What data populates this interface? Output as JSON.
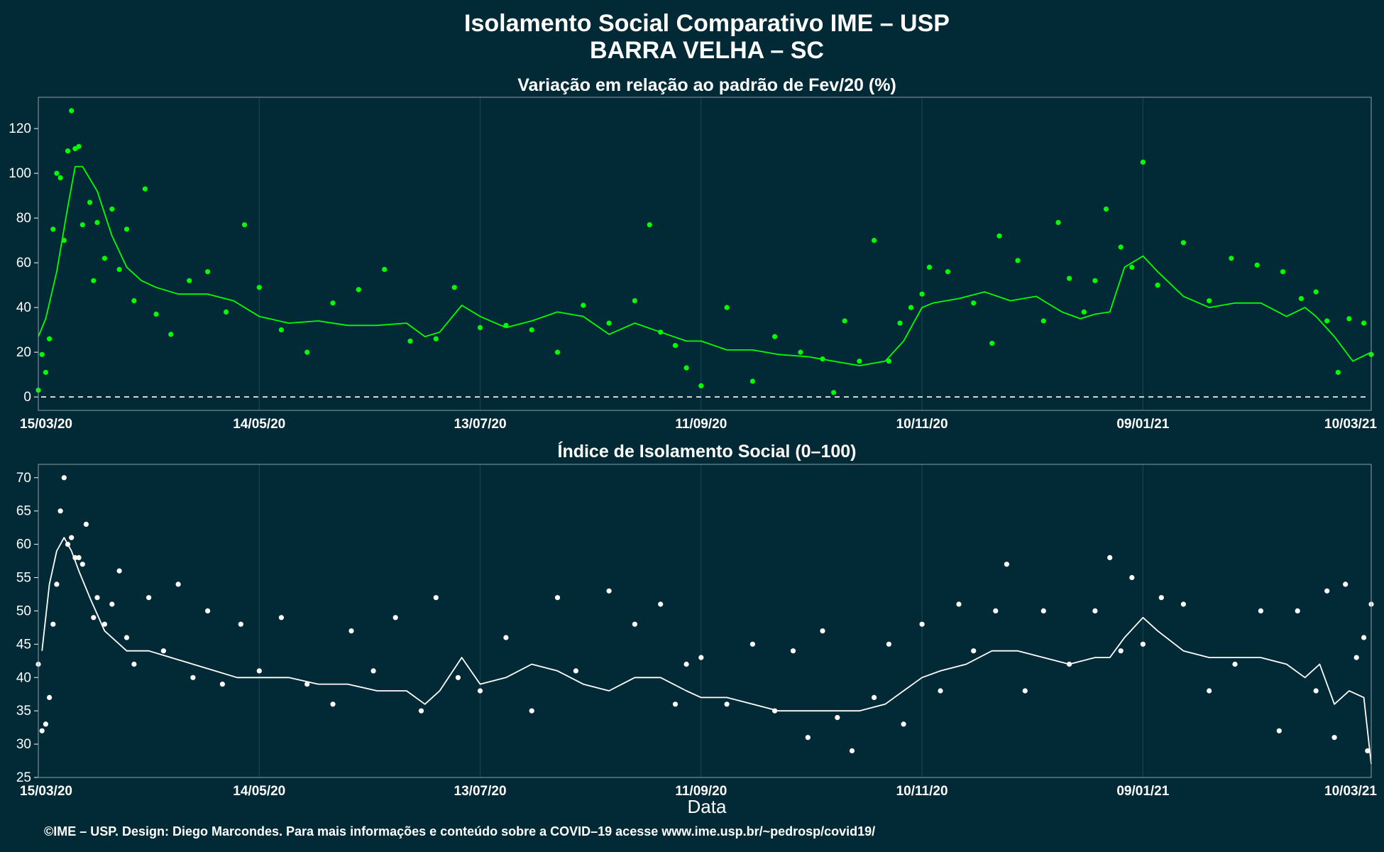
{
  "header": {
    "title": "Isolamento Social Comparativo IME – USP",
    "subtitle": "BARRA VELHA – SC"
  },
  "footer": {
    "credit": "©IME – USP. Design: Diego Marcondes. Para mais informações e conteúdo sobre a COVID–19 acesse www.ime.usp.br/~pedrosp/covid19/"
  },
  "colors": {
    "background": "#022a36",
    "variation_series": "#00ff00",
    "index_series": "#ffffff",
    "grid": "#1d4652"
  },
  "chart_data": [
    {
      "type": "scatter",
      "title": "Variação em relação ao padrão de Fev/20 (%)",
      "xlabel": "",
      "ylabel": "",
      "x_ticks": [
        "15/03/20",
        "14/05/20",
        "13/07/20",
        "11/09/20",
        "10/11/20",
        "09/01/21",
        "10/03/21"
      ],
      "x_range": [
        "15/03/20",
        "12/03/21"
      ],
      "ylim": [
        -6,
        134
      ],
      "y_ticks": [
        0,
        20,
        40,
        60,
        80,
        100,
        120
      ],
      "reference_line": 0,
      "grid": true,
      "series": [
        {
          "style": "points",
          "x": [
            "15/03/20",
            "16/03/20",
            "17/03/20",
            "18/03/20",
            "19/03/20",
            "20/03/20",
            "21/03/20",
            "22/03/20",
            "23/03/20",
            "24/03/20",
            "25/03/20",
            "26/03/20",
            "27/03/20",
            "29/03/20",
            "30/03/20",
            "31/03/20",
            "02/04/20",
            "04/04/20",
            "06/04/20",
            "08/04/20",
            "10/04/20",
            "13/04/20",
            "16/04/20",
            "20/04/20",
            "25/04/20",
            "30/04/20",
            "05/05/20",
            "10/05/20",
            "14/05/20",
            "20/05/20",
            "27/05/20",
            "03/06/20",
            "10/06/20",
            "17/06/20",
            "24/06/20",
            "01/07/20",
            "06/07/20",
            "13/07/20",
            "20/07/20",
            "27/07/20",
            "03/08/20",
            "10/08/20",
            "17/08/20",
            "24/08/20",
            "28/08/20",
            "31/08/20",
            "04/09/20",
            "07/09/20",
            "11/09/20",
            "18/09/20",
            "25/09/20",
            "01/10/20",
            "08/10/20",
            "14/10/20",
            "17/10/20",
            "20/10/20",
            "24/10/20",
            "28/10/20",
            "01/11/20",
            "04/11/20",
            "07/11/20",
            "10/11/20",
            "12/11/20",
            "17/11/20",
            "24/11/20",
            "29/11/20",
            "01/12/20",
            "06/12/20",
            "13/12/20",
            "17/12/20",
            "20/12/20",
            "24/12/20",
            "27/12/20",
            "30/12/20",
            "03/01/21",
            "06/01/21",
            "09/01/21",
            "13/01/21",
            "20/01/21",
            "27/01/21",
            "02/02/21",
            "09/02/21",
            "16/02/21",
            "21/02/21",
            "25/02/21",
            "28/02/21",
            "03/03/21",
            "06/03/21",
            "10/03/21",
            "12/03/21"
          ],
          "y": [
            3,
            19,
            11,
            26,
            75,
            100,
            98,
            70,
            110,
            128,
            111,
            112,
            77,
            87,
            52,
            78,
            62,
            84,
            57,
            75,
            43,
            93,
            37,
            28,
            52,
            56,
            38,
            77,
            49,
            30,
            20,
            42,
            48,
            57,
            25,
            26,
            49,
            31,
            32,
            30,
            20,
            41,
            33,
            43,
            77,
            29,
            23,
            13,
            5,
            40,
            7,
            27,
            20,
            17,
            2,
            34,
            16,
            70,
            16,
            33,
            40,
            46,
            58,
            56,
            42,
            24,
            72,
            61,
            34,
            78,
            53,
            38,
            52,
            84,
            67,
            58,
            105,
            50,
            69,
            43,
            62,
            59,
            56,
            44,
            47,
            34,
            11,
            35,
            33,
            19
          ]
        },
        {
          "style": "line",
          "x": [
            "15/03/20",
            "17/03/20",
            "20/03/20",
            "23/03/20",
            "25/03/20",
            "27/03/20",
            "31/03/20",
            "04/04/20",
            "08/04/20",
            "12/04/20",
            "16/04/20",
            "22/04/20",
            "30/04/20",
            "07/05/20",
            "14/05/20",
            "22/05/20",
            "30/05/20",
            "07/06/20",
            "15/06/20",
            "23/06/20",
            "28/06/20",
            "02/07/20",
            "08/07/20",
            "13/07/20",
            "20/07/20",
            "27/07/20",
            "03/08/20",
            "10/08/20",
            "17/08/20",
            "24/08/20",
            "31/08/20",
            "07/09/20",
            "11/09/20",
            "18/09/20",
            "25/09/20",
            "02/10/20",
            "10/10/20",
            "17/10/20",
            "24/10/20",
            "31/10/20",
            "05/11/20",
            "10/11/20",
            "13/11/20",
            "20/11/20",
            "27/11/20",
            "04/12/20",
            "11/12/20",
            "18/12/20",
            "23/12/20",
            "27/12/20",
            "31/12/20",
            "04/01/21",
            "09/01/21",
            "13/01/21",
            "20/01/21",
            "27/01/21",
            "03/02/21",
            "10/02/21",
            "17/02/21",
            "22/02/21",
            "25/02/21",
            "02/03/21",
            "07/03/21",
            "12/03/21"
          ],
          "y": [
            27,
            35,
            56,
            85,
            103,
            103,
            92,
            72,
            58,
            52,
            49,
            46,
            46,
            43,
            36,
            33,
            34,
            32,
            32,
            33,
            27,
            29,
            41,
            36,
            31,
            34,
            38,
            36,
            28,
            33,
            29,
            25,
            25,
            21,
            21,
            19,
            18,
            16,
            14,
            16,
            25,
            40,
            42,
            44,
            47,
            43,
            45,
            38,
            35,
            37,
            38,
            58,
            63,
            56,
            45,
            40,
            42,
            42,
            36,
            40,
            36,
            27,
            16,
            20
          ]
        }
      ]
    },
    {
      "type": "scatter",
      "title": "Índice de Isolamento Social (0–100)",
      "xlabel": "Data",
      "ylabel": "",
      "x_ticks": [
        "15/03/20",
        "14/05/20",
        "13/07/20",
        "11/09/20",
        "10/11/20",
        "09/01/21",
        "10/03/21"
      ],
      "x_range": [
        "15/03/20",
        "12/03/21"
      ],
      "ylim": [
        25,
        72
      ],
      "y_ticks": [
        25,
        30,
        35,
        40,
        45,
        50,
        55,
        60,
        65,
        70
      ],
      "grid": true,
      "series": [
        {
          "style": "points",
          "x": [
            "15/03/20",
            "16/03/20",
            "17/03/20",
            "18/03/20",
            "19/03/20",
            "20/03/20",
            "21/03/20",
            "22/03/20",
            "23/03/20",
            "24/03/20",
            "25/03/20",
            "26/03/20",
            "27/03/20",
            "28/03/20",
            "30/03/20",
            "31/03/20",
            "02/04/20",
            "04/04/20",
            "06/04/20",
            "08/04/20",
            "10/04/20",
            "14/04/20",
            "18/04/20",
            "22/04/20",
            "26/04/20",
            "30/04/20",
            "04/05/20",
            "09/05/20",
            "14/05/20",
            "20/05/20",
            "27/05/20",
            "03/06/20",
            "08/06/20",
            "14/06/20",
            "20/06/20",
            "27/06/20",
            "01/07/20",
            "07/07/20",
            "13/07/20",
            "20/07/20",
            "27/07/20",
            "03/08/20",
            "08/08/20",
            "17/08/20",
            "24/08/20",
            "31/08/20",
            "04/09/20",
            "07/09/20",
            "11/09/20",
            "18/09/20",
            "25/09/20",
            "01/10/20",
            "06/10/20",
            "10/10/20",
            "14/10/20",
            "18/10/20",
            "22/10/20",
            "28/10/20",
            "01/11/20",
            "05/11/20",
            "10/11/20",
            "15/11/20",
            "20/11/20",
            "24/11/20",
            "30/11/20",
            "03/12/20",
            "08/12/20",
            "13/12/20",
            "20/12/20",
            "27/12/20",
            "31/12/20",
            "03/01/21",
            "06/01/21",
            "09/01/21",
            "14/01/21",
            "20/01/21",
            "27/01/21",
            "03/02/21",
            "10/02/21",
            "15/02/21",
            "20/02/21",
            "25/02/21",
            "28/02/21",
            "02/03/21",
            "05/03/21",
            "08/03/21",
            "10/03/21",
            "11/03/21",
            "12/03/21"
          ],
          "y": [
            42,
            32,
            33,
            37,
            48,
            54,
            65,
            70,
            60,
            61,
            58,
            58,
            57,
            63,
            49,
            52,
            48,
            51,
            56,
            46,
            42,
            52,
            44,
            54,
            40,
            50,
            39,
            48,
            41,
            49,
            39,
            36,
            47,
            41,
            49,
            35,
            52,
            40,
            38,
            46,
            35,
            52,
            41,
            53,
            48,
            51,
            36,
            42,
            43,
            36,
            45,
            35,
            44,
            31,
            47,
            34,
            29,
            37,
            45,
            33,
            48,
            38,
            51,
            44,
            50,
            57,
            38,
            50,
            42,
            50,
            58,
            44,
            55,
            45,
            52,
            51,
            38,
            42,
            50,
            32,
            50,
            38,
            53,
            31,
            54,
            43,
            46,
            29,
            51
          ]
        },
        {
          "style": "line",
          "x": [
            "16/03/20",
            "18/03/20",
            "20/03/20",
            "22/03/20",
            "24/03/20",
            "26/03/20",
            "29/03/20",
            "02/04/20",
            "08/04/20",
            "14/04/20",
            "20/04/20",
            "26/04/20",
            "02/05/20",
            "08/05/20",
            "14/05/20",
            "22/05/20",
            "30/05/20",
            "07/06/20",
            "15/06/20",
            "23/06/20",
            "28/06/20",
            "02/07/20",
            "08/07/20",
            "13/07/20",
            "20/07/20",
            "27/07/20",
            "03/08/20",
            "10/08/20",
            "17/08/20",
            "24/08/20",
            "31/08/20",
            "07/09/20",
            "11/09/20",
            "18/09/20",
            "25/09/20",
            "02/10/20",
            "10/10/20",
            "17/10/20",
            "24/10/20",
            "31/10/20",
            "05/11/20",
            "10/11/20",
            "15/11/20",
            "22/11/20",
            "29/11/20",
            "06/12/20",
            "13/12/20",
            "20/12/20",
            "27/12/20",
            "31/12/20",
            "04/01/21",
            "09/01/21",
            "13/01/21",
            "20/01/21",
            "27/01/21",
            "03/02/21",
            "10/02/21",
            "17/02/21",
            "22/02/21",
            "26/02/21",
            "02/03/21",
            "06/03/21",
            "10/03/21",
            "12/03/21"
          ],
          "y": [
            44,
            54,
            59,
            61,
            59,
            56,
            52,
            47,
            44,
            44,
            43,
            42,
            41,
            40,
            40,
            40,
            39,
            39,
            38,
            38,
            36,
            38,
            43,
            39,
            40,
            42,
            41,
            39,
            38,
            40,
            40,
            38,
            37,
            37,
            36,
            35,
            35,
            35,
            35,
            36,
            38,
            40,
            41,
            42,
            44,
            44,
            43,
            42,
            43,
            43,
            46,
            49,
            47,
            44,
            43,
            43,
            43,
            42,
            40,
            42,
            36,
            38,
            37,
            27
          ]
        }
      ]
    }
  ]
}
